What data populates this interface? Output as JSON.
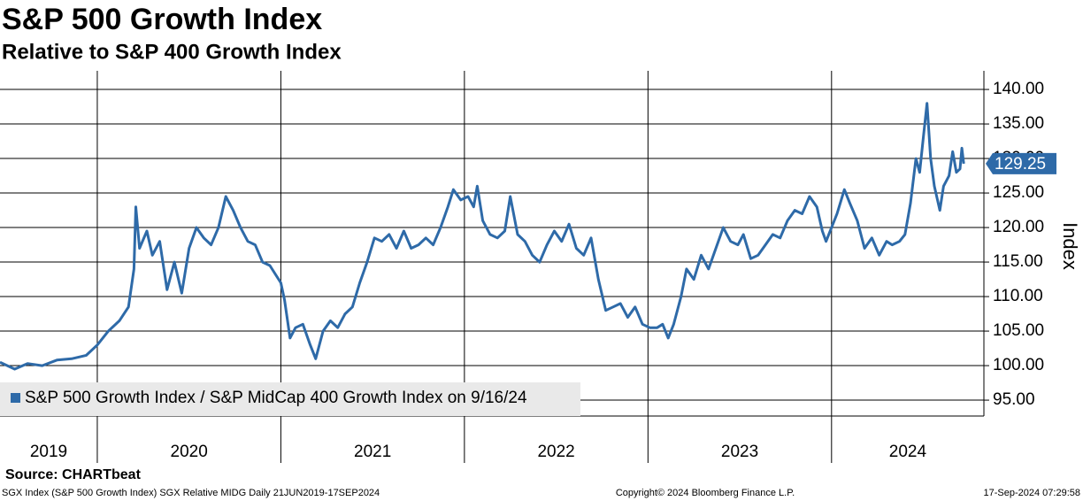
{
  "chart_data": {
    "type": "line",
    "title": "S&P 500 Growth Index",
    "subtitle": "Relative to S&P 400 Growth Index",
    "y_axis_label": "Index",
    "source": "Source: CHARTbeat",
    "footer_left": "SGX Index (S&P 500 Growth Index) SGX Relative MIDG  Daily 21JUN2019-17SEP2024",
    "footer_center": "Copyright© 2024 Bloomberg Finance L.P.",
    "footer_right": "17-Sep-2024 07:29:58",
    "x_labels": [
      "2019",
      "2020",
      "2021",
      "2022",
      "2023",
      "2024"
    ],
    "xlim": [
      2019.47,
      2024.83
    ],
    "xticks": [
      2020,
      2021,
      2022,
      2023,
      2024
    ],
    "ylim": [
      92.7,
      142.7
    ],
    "yticks": [
      {
        "value": 95,
        "label": "95.00"
      },
      {
        "value": 100,
        "label": "100.00"
      },
      {
        "value": 105,
        "label": "105.00"
      },
      {
        "value": 110,
        "label": "110.00"
      },
      {
        "value": 115,
        "label": "115.00"
      },
      {
        "value": 120,
        "label": "120.00"
      },
      {
        "value": 125,
        "label": "125.00"
      },
      {
        "value": 130,
        "label": "130.00"
      },
      {
        "value": 135,
        "label": "135.00"
      },
      {
        "value": 140,
        "label": "140.00"
      }
    ],
    "grid": true,
    "legend": "bottom-left",
    "x": [
      2019.47,
      2019.55,
      2019.62,
      2019.7,
      2019.78,
      2019.86,
      2019.94,
      2020.0,
      2020.06,
      2020.12,
      2020.17,
      2020.2,
      2020.21,
      2020.23,
      2020.27,
      2020.3,
      2020.34,
      2020.38,
      2020.42,
      2020.46,
      2020.5,
      2020.54,
      2020.58,
      2020.62,
      2020.66,
      2020.7,
      2020.74,
      2020.78,
      2020.82,
      2020.86,
      2020.9,
      2020.94,
      2021.0,
      2021.02,
      2021.05,
      2021.08,
      2021.12,
      2021.16,
      2021.19,
      2021.23,
      2021.27,
      2021.31,
      2021.35,
      2021.39,
      2021.43,
      2021.47,
      2021.51,
      2021.55,
      2021.59,
      2021.63,
      2021.67,
      2021.71,
      2021.75,
      2021.79,
      2021.83,
      2021.87,
      2021.91,
      2021.94,
      2021.98,
      2022.02,
      2022.05,
      2022.07,
      2022.1,
      2022.14,
      2022.18,
      2022.22,
      2022.25,
      2022.29,
      2022.33,
      2022.37,
      2022.41,
      2022.45,
      2022.49,
      2022.53,
      2022.57,
      2022.61,
      2022.65,
      2022.69,
      2022.73,
      2022.77,
      2022.81,
      2022.85,
      2022.89,
      2022.93,
      2022.97,
      2023.01,
      2023.05,
      2023.08,
      2023.11,
      2023.14,
      2023.18,
      2023.21,
      2023.25,
      2023.29,
      2023.33,
      2023.37,
      2023.41,
      2023.45,
      2023.49,
      2023.52,
      2023.56,
      2023.6,
      2023.64,
      2023.68,
      2023.72,
      2023.76,
      2023.8,
      2023.84,
      2023.88,
      2023.92,
      2023.95,
      2023.97,
      2024.0,
      2024.03,
      2024.07,
      2024.1,
      2024.14,
      2024.18,
      2024.22,
      2024.26,
      2024.3,
      2024.33,
      2024.37,
      2024.4,
      2024.43,
      2024.46,
      2024.48,
      2024.5,
      2024.52,
      2024.54,
      2024.56,
      2024.59,
      2024.61,
      2024.64,
      2024.66,
      2024.68,
      2024.7,
      2024.71,
      2024.72
    ],
    "series": [
      {
        "name": "S&P 500 Growth Index / S&P MidCap 400 Growth Index on 9/16/24",
        "color": "#2e6aa8",
        "values": [
          100.5,
          99.5,
          100.3,
          100.0,
          100.8,
          101.0,
          101.5,
          103,
          105,
          106.5,
          108.5,
          114,
          123,
          117,
          119.5,
          116,
          118,
          111,
          115,
          110.5,
          117,
          120,
          118.5,
          117.5,
          120,
          124.5,
          122.5,
          120,
          118,
          117.5,
          115,
          114.5,
          112,
          109.5,
          104,
          105.5,
          106,
          103,
          101,
          105,
          106.5,
          105.5,
          107.5,
          108.5,
          112,
          115,
          118.5,
          118,
          119,
          117,
          119.5,
          117,
          117.5,
          118.5,
          117.5,
          120,
          123,
          125.5,
          124,
          124.5,
          123,
          126,
          121,
          119,
          118.5,
          119.5,
          124.5,
          119,
          118,
          116,
          115,
          117.5,
          119.5,
          118,
          120.5,
          117,
          116,
          118.5,
          112.5,
          108,
          108.5,
          109,
          107,
          108.5,
          106,
          105.5,
          105.5,
          106,
          104,
          106,
          110,
          114,
          112.5,
          116,
          114,
          117,
          120,
          118,
          117.5,
          119,
          115.5,
          116,
          117.5,
          119,
          118.5,
          121,
          122.5,
          122,
          124.5,
          123,
          119.5,
          118,
          120,
          122,
          125.5,
          123.5,
          121,
          117,
          118.5,
          116,
          118,
          117.5,
          118,
          119,
          123.5,
          130,
          128,
          133,
          138,
          130,
          126,
          122.5,
          126,
          127.5,
          131,
          128,
          128.5,
          131.5,
          129.25
        ]
      }
    ]
  }
}
